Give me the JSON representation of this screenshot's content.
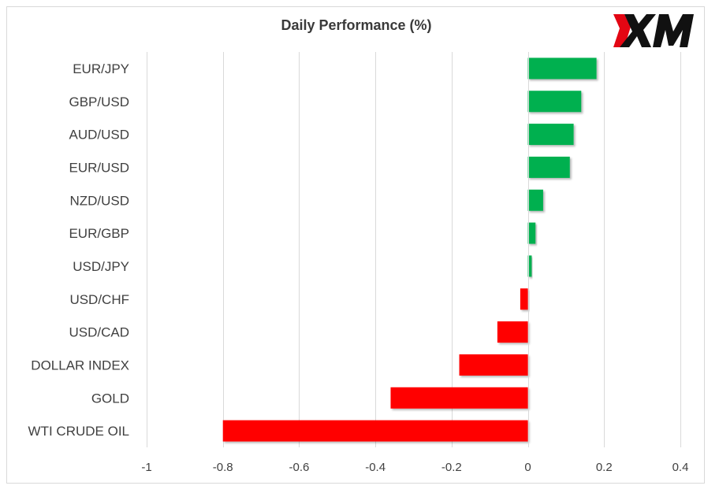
{
  "title": "Daily Performance (%)",
  "logo": {
    "name": "XM",
    "accent": "#e30613",
    "text_color": "#111111"
  },
  "colors": {
    "positive": "#00b050",
    "negative": "#ff0000",
    "grid": "#d9d9d9",
    "text": "#404040"
  },
  "chart_data": {
    "type": "bar",
    "orientation": "horizontal",
    "title": "Daily Performance (%)",
    "categories": [
      "EUR/JPY",
      "GBP/USD",
      "AUD/USD",
      "EUR/USD",
      "NZD/USD",
      "EUR/GBP",
      "USD/JPY",
      "USD/CHF",
      "USD/CAD",
      "DOLLAR INDEX",
      "GOLD",
      "WTI CRUDE OIL"
    ],
    "values": [
      0.18,
      0.14,
      0.12,
      0.11,
      0.04,
      0.02,
      0.01,
      -0.02,
      -0.08,
      -0.18,
      -0.36,
      -0.8
    ],
    "xlim": [
      -1,
      0.4
    ],
    "xticks": [
      -1,
      -0.8,
      -0.6,
      -0.4,
      -0.2,
      0,
      0.2,
      0.4
    ],
    "xtick_labels": [
      "-1",
      "-0.8",
      "-0.6",
      "-0.4",
      "-0.2",
      "0",
      "0.2",
      "0.4"
    ],
    "grid": true,
    "legend": "none"
  }
}
